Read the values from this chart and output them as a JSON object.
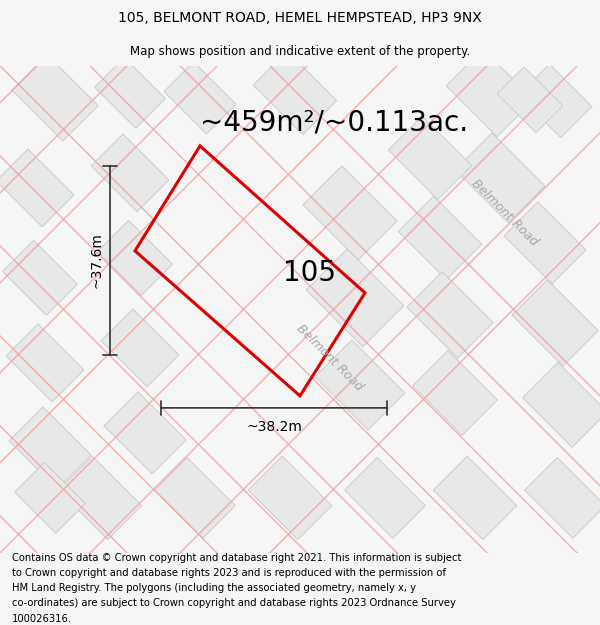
{
  "title": "105, BELMONT ROAD, HEMEL HEMPSTEAD, HP3 9NX",
  "subtitle": "Map shows position and indicative extent of the property.",
  "area_text": "~459m²/~0.113ac.",
  "label_105": "105",
  "dim_width": "~38.2m",
  "dim_height": "~37.6m",
  "road_label_center": "Belmont Road",
  "road_label_right": "Belmont Road",
  "footer": "Contains OS data © Crown copyright and database right 2021. This information is subject to Crown copyright and database rights 2023 and is reproduced with the permission of HM Land Registry. The polygons (including the associated geometry, namely x, y co-ordinates) are subject to Crown copyright and database rights 2023 Ordnance Survey 100026316.",
  "bg_color": "#f5f5f5",
  "map_bg": "#ffffff",
  "block_fill": "#e8e8e8",
  "block_edge": "#c8c8c8",
  "road_color": "#f0a0a0",
  "prop_edge": "#dd0000",
  "title_fontsize": 10,
  "subtitle_fontsize": 8.5,
  "area_fontsize": 20,
  "label_fontsize": 20,
  "dim_fontsize": 10,
  "footer_fontsize": 7.2,
  "road_label_fontsize": 9
}
